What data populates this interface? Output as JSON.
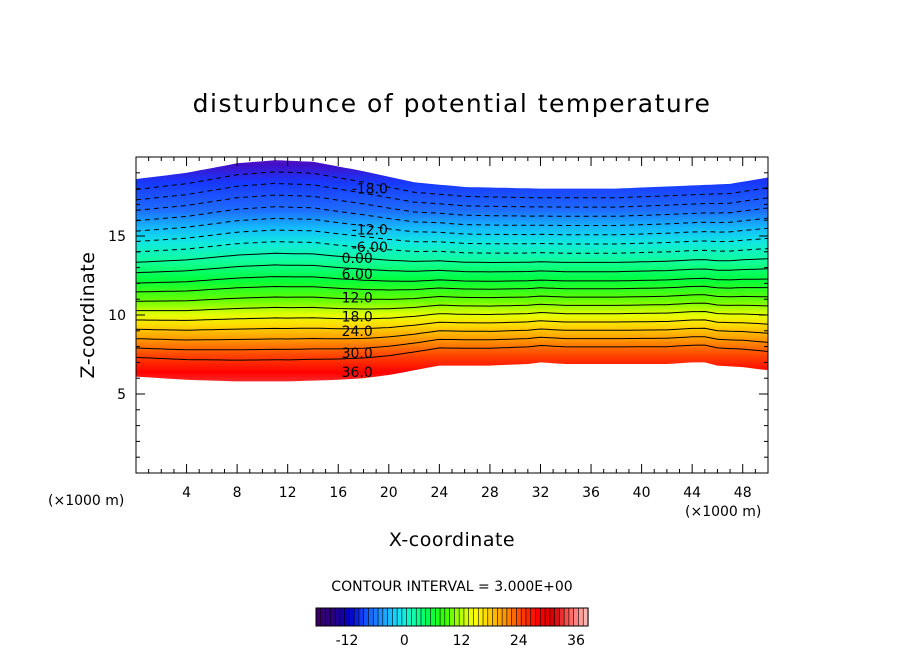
{
  "chart_data": {
    "type": "heatmap",
    "title": "disturbunce of potential temperature",
    "xlabel": "X-coordinate",
    "ylabel": "Z-coordinate",
    "x_unit": "(×1000 m)",
    "y_unit": "(×1000 m)",
    "xlim": [
      0,
      50
    ],
    "ylim": [
      0,
      20
    ],
    "x_ticks": [
      4,
      8,
      12,
      16,
      20,
      24,
      28,
      32,
      36,
      40,
      44,
      48
    ],
    "y_ticks": [
      5,
      10,
      15
    ],
    "contour_interval_text": "CONTOUR INTERVAL = 3.000E+00",
    "contour_interval": 3.0,
    "contour_labels": [
      {
        "text": "-18.0",
        "value": -18,
        "x": 18.5,
        "z": 18.0
      },
      {
        "text": "-12.0",
        "value": -12,
        "x": 18.5,
        "z": 15.4
      },
      {
        "text": "-6.00",
        "value": -6,
        "x": 18.5,
        "z": 14.3
      },
      {
        "text": "0.00",
        "value": 0,
        "x": 17.5,
        "z": 13.6
      },
      {
        "text": "6.00",
        "value": 6,
        "x": 17.5,
        "z": 12.6
      },
      {
        "text": "12.0",
        "value": 12,
        "x": 17.5,
        "z": 11.1
      },
      {
        "text": "18.0",
        "value": 18,
        "x": 17.5,
        "z": 9.9
      },
      {
        "text": "24.0",
        "value": 24,
        "x": 17.5,
        "z": 9.0
      },
      {
        "text": "30.0",
        "value": 30,
        "x": 17.5,
        "z": 7.6
      },
      {
        "text": "36.0",
        "value": 36,
        "x": 17.5,
        "z": 6.4
      }
    ],
    "field_top_boundary": {
      "x": [
        0,
        4,
        8,
        11,
        14,
        18,
        22,
        26,
        32,
        38,
        44,
        47,
        50
      ],
      "z": [
        18.6,
        19.0,
        19.6,
        19.8,
        19.7,
        19.1,
        18.4,
        18.1,
        18.0,
        18.0,
        18.2,
        18.3,
        18.7
      ]
    },
    "field_bottom_boundary": {
      "x": [
        0,
        4,
        8,
        12,
        16,
        18,
        20,
        22,
        24,
        28,
        31,
        32,
        34,
        38,
        42,
        44,
        45,
        46,
        48,
        50
      ],
      "z": [
        6.1,
        5.9,
        5.8,
        5.8,
        5.9,
        6.0,
        6.2,
        6.5,
        6.8,
        6.8,
        6.9,
        7.0,
        6.9,
        6.9,
        6.9,
        7.0,
        7.0,
        6.8,
        6.7,
        6.5
      ]
    },
    "colorbar": {
      "min": -18,
      "max": 39,
      "ticks": [
        -12,
        0,
        12,
        24,
        36
      ],
      "colors": [
        "#3a0068",
        "#2a0088",
        "#0000c8",
        "#1450ff",
        "#1e96ff",
        "#14dcff",
        "#10ffb4",
        "#00ff50",
        "#32ff00",
        "#b4ff00",
        "#ffff00",
        "#ffc800",
        "#ff8c00",
        "#ff3c00",
        "#ff0000",
        "#d20000",
        "#ff6464",
        "#ffb4b4"
      ]
    }
  }
}
